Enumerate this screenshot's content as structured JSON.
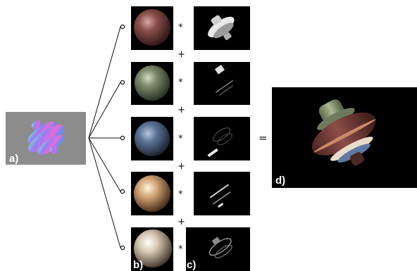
{
  "labels": {
    "a": "a)",
    "b": "b)",
    "c": "c)",
    "d": "d)"
  },
  "operators": {
    "multiply": "*",
    "plus": "+",
    "equals": "="
  },
  "rows": [
    {
      "sphere_color": "#8a4f4b",
      "sphere_highlight": "#c89a94"
    },
    {
      "sphere_color": "#7d8a6a",
      "sphere_highlight": "#c7cfb4"
    },
    {
      "sphere_color": "#5d7597",
      "sphere_highlight": "#a9bcd8"
    },
    {
      "sphere_color": "#d6a77a",
      "sphere_highlight": "#fff1dc"
    },
    {
      "sphere_color": "#cdbda8",
      "sphere_highlight": "#ffffff"
    }
  ]
}
